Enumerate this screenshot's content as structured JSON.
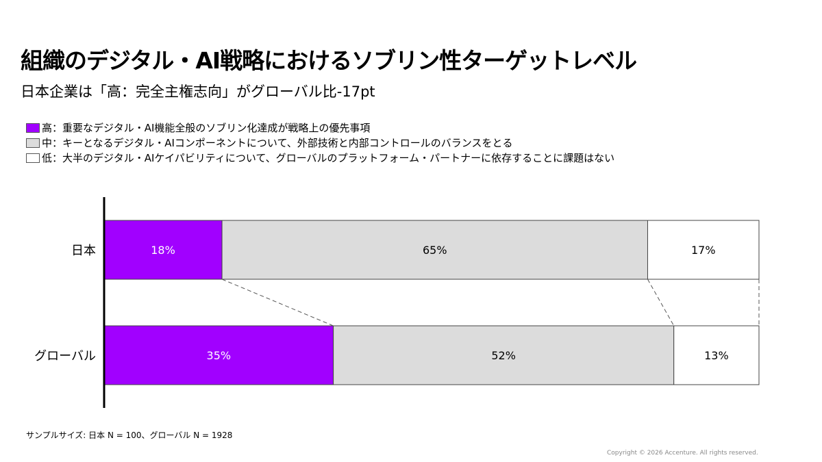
{
  "title": "組織のデジタル・AI戦略におけるソブリン性ターゲットレベル",
  "subtitle": "日本企業は「高：完全主権志向」がグローバル比-17pt",
  "legend": [
    {
      "label": "高：重要なデジタル・AI機能全般のソブリン化達成が戦略上の優先事項",
      "color": "#a100ff"
    },
    {
      "label": "中：キーとなるデジタル・AIコンポーネントについて、外部技術と内部コントロールのバランスをとる",
      "color": "#dcdcdc"
    },
    {
      "label": "低：大半のデジタル・AIケイパビリティについて、グローバルのプラットフォーム・パートナーに依存することに課題はない",
      "color": "#ffffff"
    }
  ],
  "chart_data": {
    "type": "bar",
    "orientation": "horizontal",
    "stacked": true,
    "percent": true,
    "categories": [
      "日本",
      "グローバル"
    ],
    "series": [
      {
        "name": "高",
        "values": [
          18,
          35
        ],
        "labels": [
          "18%",
          "35%"
        ],
        "color": "#a100ff"
      },
      {
        "name": "中",
        "values": [
          65,
          52
        ],
        "labels": [
          "65%",
          "52%"
        ],
        "color": "#dcdcdc"
      },
      {
        "name": "低",
        "values": [
          17,
          13
        ],
        "labels": [
          "17%",
          "13%"
        ],
        "color": "#ffffff"
      }
    ],
    "xlim": [
      0,
      100
    ],
    "connectors": "dashed"
  },
  "note": "サンプルサイズ: 日本 N = 100、グローバル N = 1928",
  "copyright": "Copyright © 2026 Accenture. All rights reserved."
}
